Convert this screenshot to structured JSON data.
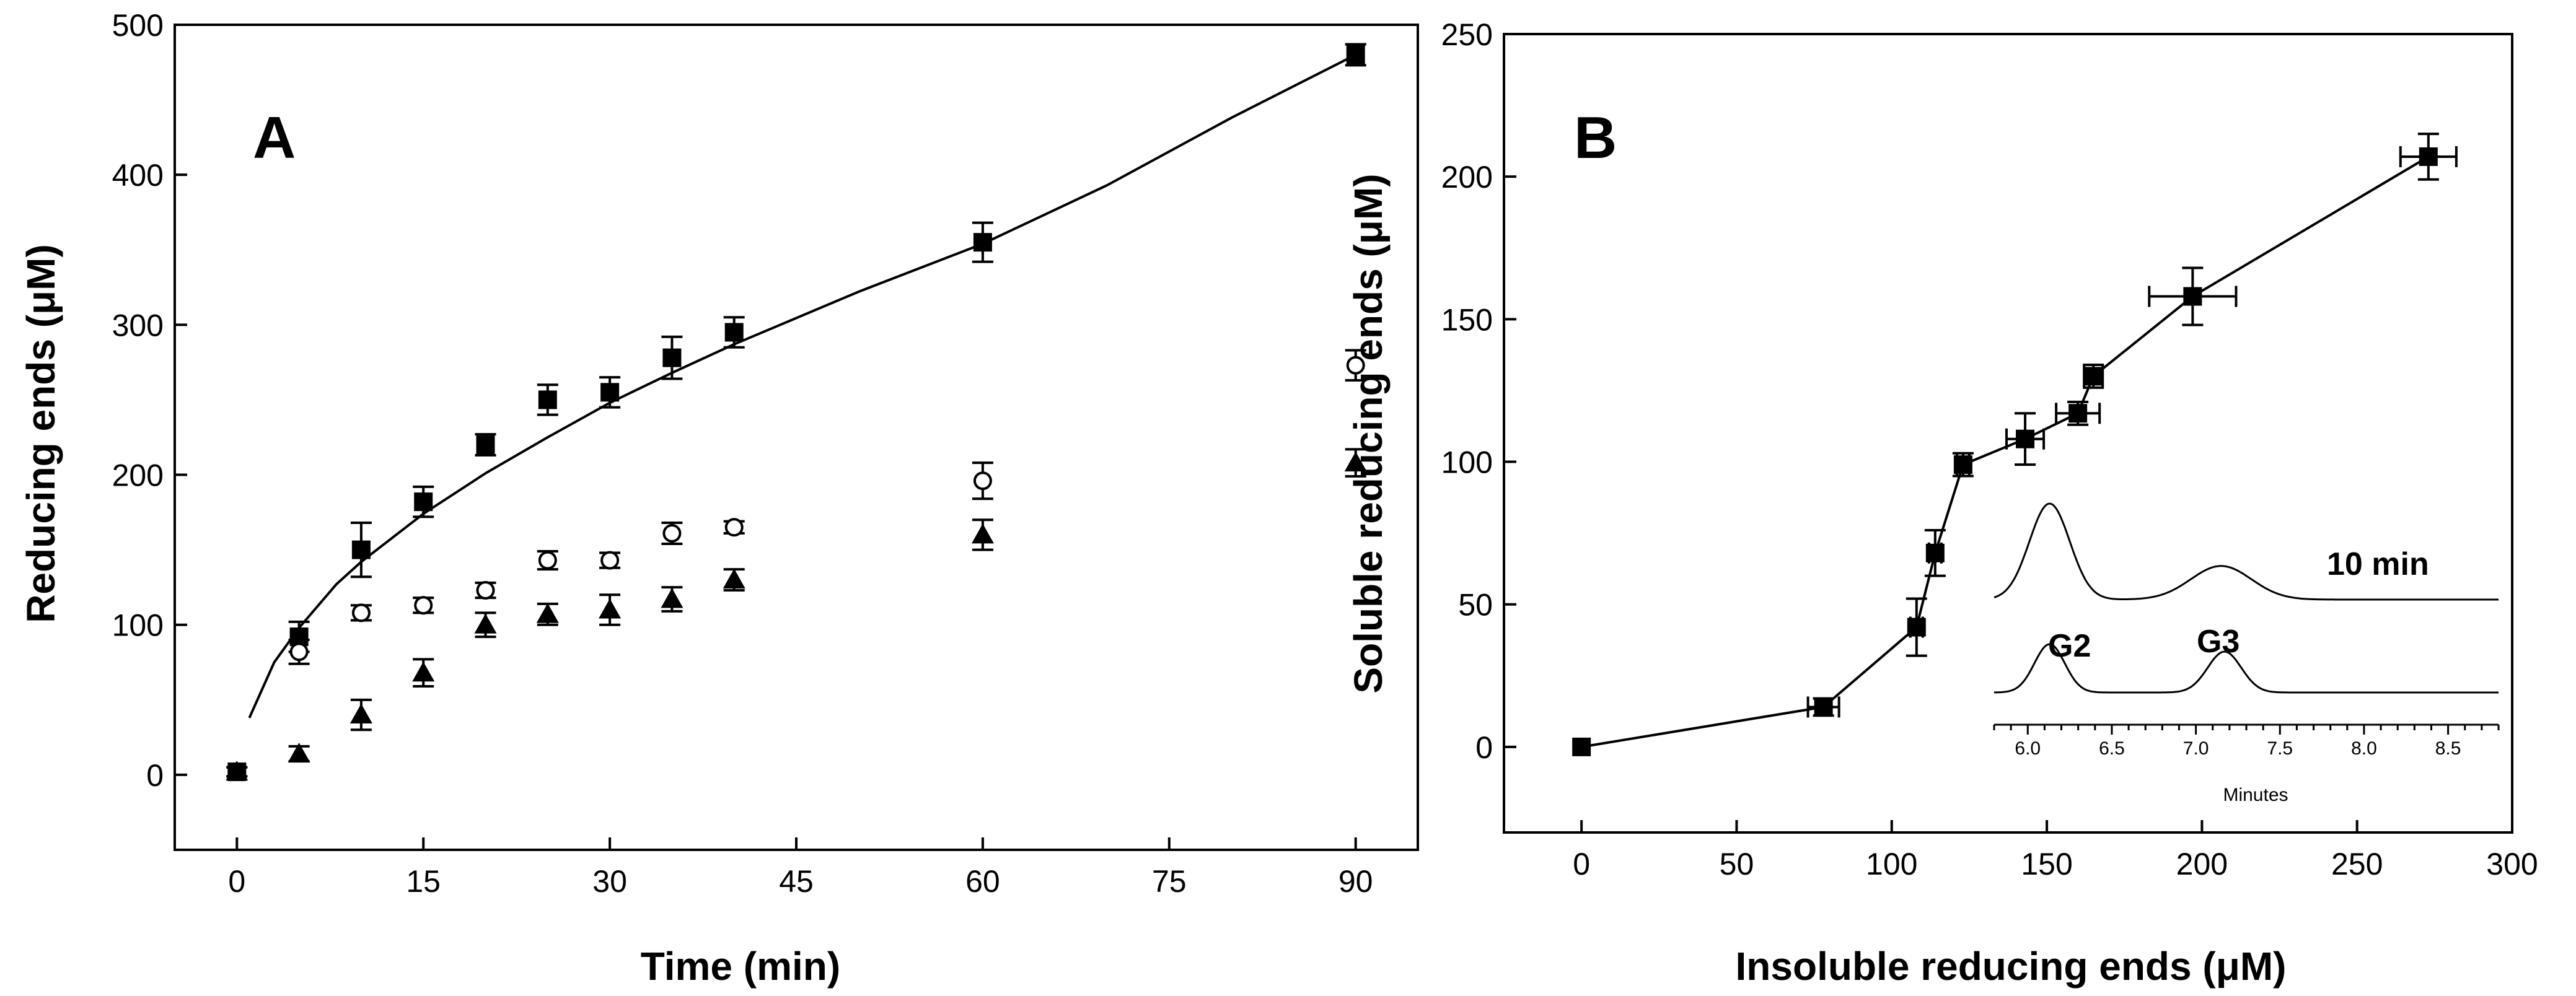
{
  "colors": {
    "ink": "#000000",
    "background": "#ffffff"
  },
  "chart_data": [
    {
      "type": "scatter",
      "panel_label": "A",
      "title": "",
      "xlabel": "Time (min)",
      "ylabel": "Reducing ends (μM)",
      "xlim": [
        -5,
        95
      ],
      "ylim": [
        -50,
        500
      ],
      "xticks": [
        0,
        15,
        30,
        45,
        60,
        75,
        90
      ],
      "yticks": [
        0,
        100,
        200,
        300,
        400,
        500
      ],
      "series": [
        {
          "name": "filled squares",
          "marker": "square-filled",
          "points": [
            {
              "x": 0,
              "y": 2,
              "err": 3
            },
            {
              "x": 5,
              "y": 92,
              "err": 10
            },
            {
              "x": 10,
              "y": 150,
              "err": 18
            },
            {
              "x": 15,
              "y": 182,
              "err": 10
            },
            {
              "x": 20,
              "y": 220,
              "err": 7
            },
            {
              "x": 25,
              "y": 250,
              "err": 10
            },
            {
              "x": 30,
              "y": 255,
              "err": 10
            },
            {
              "x": 35,
              "y": 278,
              "err": 14
            },
            {
              "x": 40,
              "y": 295,
              "err": 10
            },
            {
              "x": 60,
              "y": 355,
              "err": 13
            },
            {
              "x": 90,
              "y": 480,
              "err": 7
            }
          ]
        },
        {
          "name": "open circles",
          "marker": "circle-open",
          "points": [
            {
              "x": 5,
              "y": 82,
              "err": 8
            },
            {
              "x": 10,
              "y": 108,
              "err": 5
            },
            {
              "x": 15,
              "y": 113,
              "err": 5
            },
            {
              "x": 20,
              "y": 123,
              "err": 5
            },
            {
              "x": 25,
              "y": 143,
              "err": 6
            },
            {
              "x": 30,
              "y": 143,
              "err": 5
            },
            {
              "x": 35,
              "y": 161,
              "err": 7
            },
            {
              "x": 40,
              "y": 165,
              "err": 4
            },
            {
              "x": 60,
              "y": 196,
              "err": 12
            },
            {
              "x": 90,
              "y": 273,
              "err": 10
            }
          ]
        },
        {
          "name": "filled triangles",
          "marker": "triangle-filled",
          "points": [
            {
              "x": 0,
              "y": 2,
              "err": 3
            },
            {
              "x": 5,
              "y": 14,
              "err": 5
            },
            {
              "x": 10,
              "y": 40,
              "err": 10
            },
            {
              "x": 15,
              "y": 68,
              "err": 9
            },
            {
              "x": 20,
              "y": 100,
              "err": 8
            },
            {
              "x": 25,
              "y": 107,
              "err": 7
            },
            {
              "x": 30,
              "y": 110,
              "err": 10
            },
            {
              "x": 35,
              "y": 117,
              "err": 8
            },
            {
              "x": 40,
              "y": 130,
              "err": 7
            },
            {
              "x": 60,
              "y": 160,
              "err": 10
            },
            {
              "x": 90,
              "y": 208,
              "err": 9
            }
          ]
        }
      ],
      "fit_curve": {
        "name": "power-law fit",
        "x": [
          1,
          3,
          5,
          8,
          10,
          15,
          20,
          25,
          30,
          35,
          40,
          50,
          60,
          70,
          80,
          90
        ],
        "y": [
          38,
          75,
          98,
          127,
          142,
          174,
          201,
          225,
          248,
          268,
          287,
          322,
          354,
          393,
          438,
          480
        ]
      }
    },
    {
      "type": "line",
      "panel_label": "B",
      "title": "",
      "xlabel": "Insoluble reducing ends (μM)",
      "ylabel": "Soluble reducing ends (μM)",
      "xlim": [
        -25,
        300
      ],
      "ylim": [
        -30,
        250
      ],
      "xticks": [
        0,
        50,
        100,
        150,
        200,
        250,
        300
      ],
      "yticks": [
        0,
        50,
        100,
        150,
        200,
        250
      ],
      "series": [
        {
          "name": "soluble vs insoluble",
          "marker": "square-filled",
          "points": [
            {
              "x": 0,
              "y": 0,
              "xerr": 0,
              "yerr": 0
            },
            {
              "x": 78,
              "y": 14,
              "xerr": 5,
              "yerr": 3
            },
            {
              "x": 108,
              "y": 42,
              "xerr": 2,
              "yerr": 10
            },
            {
              "x": 114,
              "y": 68,
              "xerr": 2,
              "yerr": 8
            },
            {
              "x": 123,
              "y": 99,
              "xerr": 2,
              "yerr": 4
            },
            {
              "x": 143,
              "y": 108,
              "xerr": 6,
              "yerr": 9
            },
            {
              "x": 160,
              "y": 117,
              "xerr": 7,
              "yerr": 4
            },
            {
              "x": 165,
              "y": 130,
              "xerr": 3,
              "yerr": 4
            },
            {
              "x": 197,
              "y": 158,
              "xerr": 14,
              "yerr": 10
            },
            {
              "x": 273,
              "y": 207,
              "xerr": 9,
              "yerr": 8
            }
          ]
        }
      ],
      "inset": {
        "type": "line",
        "xlabel": "Minutes",
        "xlim": [
          5.8,
          8.8
        ],
        "xticks": [
          6.0,
          6.5,
          7.0,
          7.5,
          8.0,
          8.5
        ],
        "xtick_labels": [
          "6.0",
          "6.5",
          "7.0",
          "7.5",
          "8.0",
          "8.5"
        ],
        "traces": [
          {
            "name": "10 min",
            "label": "10 min",
            "peaks": [
              {
                "label": "",
                "center": 6.13,
                "height": 1.0,
                "width": 0.12
              },
              {
                "label": "",
                "center": 7.15,
                "height": 0.35,
                "width": 0.18
              }
            ]
          },
          {
            "name": "standards",
            "label": "",
            "peaks": [
              {
                "label": "G2",
                "center": 6.13,
                "height": 0.65,
                "width": 0.09
              },
              {
                "label": "G3",
                "center": 7.17,
                "height": 0.55,
                "width": 0.1
              }
            ]
          }
        ]
      }
    }
  ]
}
